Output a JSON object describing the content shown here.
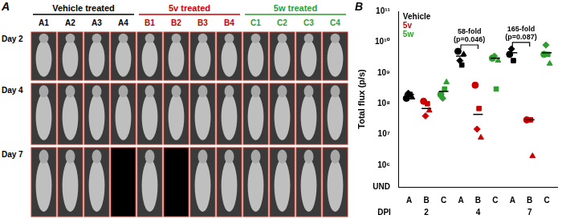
{
  "panel_a": {
    "label": "A",
    "groups": [
      {
        "name": "Vehicle treated",
        "color": "#000000",
        "animals": [
          "A1",
          "A2",
          "A3",
          "A4"
        ]
      },
      {
        "name": "5v treated",
        "color": "#cc0000",
        "animals": [
          "B1",
          "B2",
          "B3",
          "B4"
        ]
      },
      {
        "name": "5w treated",
        "color": "#2e9e2e",
        "animals": [
          "C1",
          "C2",
          "C3",
          "C4"
        ]
      }
    ],
    "rows": [
      "Day 2",
      "Day 4",
      "Day 7"
    ],
    "missing": {
      "Day 7": [
        "A4",
        "B2"
      ]
    }
  },
  "chart_data": {
    "type": "scatter",
    "panel_label": "B",
    "y_label": "Total flux (p/s)",
    "categories": [
      "A",
      "B",
      "C",
      "A",
      "B",
      "C",
      "A",
      "B",
      "C"
    ],
    "x_groups": {
      "label": "DPI",
      "values": [
        "2",
        "4",
        "7"
      ]
    },
    "log": "y",
    "grid": false,
    "ylim": [
      200000,
      100000000000
    ],
    "yticks": [
      {
        "value": 200000,
        "label": "UND"
      },
      {
        "value": 1000000,
        "label": "10⁶"
      },
      {
        "value": 10000000,
        "label": "10⁷"
      },
      {
        "value": 100000000,
        "label": "10⁸"
      },
      {
        "value": 1000000000,
        "label": "10⁹"
      },
      {
        "value": 10000000000,
        "label": "10¹⁰"
      },
      {
        "value": 100000000000,
        "label": "10¹¹"
      }
    ],
    "series": [
      {
        "name": "Vehicle",
        "color": "#000000",
        "values": [
          [
            150000000,
            220000000,
            200000000,
            160000000
          ],
          null,
          null,
          [
            5000000000,
            2500000000,
            1800000000,
            4000000000
          ],
          null,
          null,
          [
            4000000000,
            6000000000,
            2500000000,
            null
          ],
          null,
          null
        ],
        "means": [
          200000000,
          null,
          null,
          3500000000,
          null,
          null,
          4500000000,
          null,
          null
        ]
      },
      {
        "name": "5v",
        "color": "#cc0000",
        "values": [
          null,
          [
            120000000,
            40000000,
            100000000,
            60000000
          ],
          null,
          null,
          [
            400000000,
            15000000,
            70000000,
            8000000
          ],
          null,
          null,
          [
            30000000,
            null,
            30000000,
            2000000
          ],
          null
        ],
        "means": [
          null,
          70000000,
          null,
          null,
          45000000,
          null,
          null,
          30000000,
          null
        ]
      },
      {
        "name": "5w",
        "color": "#2e9e2e",
        "values": [
          null,
          null,
          [
            200000000,
            150000000,
            300000000,
            500000000
          ],
          null,
          null,
          [
            3000000000,
            3500000000,
            300000000,
            2500000000
          ],
          null,
          null,
          [
            4000000000,
            8000000000,
            4000000000,
            2000000000
          ]
        ],
        "means": [
          null,
          null,
          250000000,
          null,
          null,
          3000000000,
          null,
          null,
          4500000000
        ]
      }
    ],
    "annotations": [
      {
        "dpi": "4",
        "from": "A",
        "to": "B",
        "text": [
          "58-fold",
          "(p=0.046)"
        ]
      },
      {
        "dpi": "7",
        "from": "A",
        "to": "B",
        "text": [
          "165-fold",
          "(p=0.087)"
        ]
      }
    ],
    "legend": "top-left"
  }
}
